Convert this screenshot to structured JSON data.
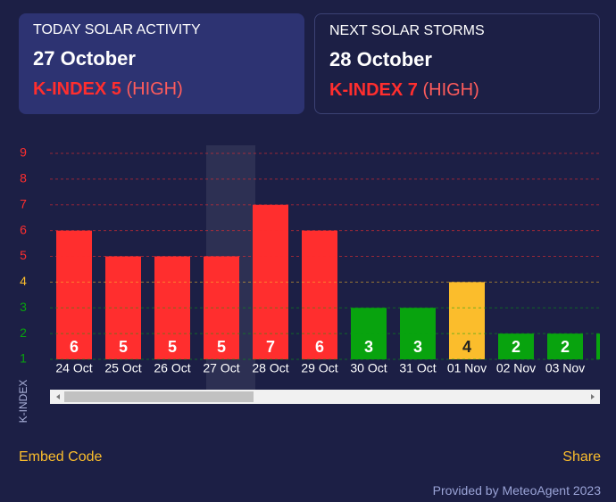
{
  "cards": [
    {
      "heading": "TODAY SOLAR ACTIVITY",
      "date": "27 October",
      "index": "K-INDEX 5",
      "level": "(HIGH)"
    },
    {
      "heading": "NEXT SOLAR STORMS",
      "date": "28 October",
      "index": "K-INDEX 7",
      "level": "(HIGH)"
    }
  ],
  "chart_data": {
    "type": "bar",
    "y_label": "K-INDEX",
    "categories": [
      "24 Oct",
      "25 Oct",
      "26 Oct",
      "27 Oct",
      "28 Oct",
      "29 Oct",
      "30 Oct",
      "31 Oct",
      "01 Nov",
      "02 Nov",
      "03 Nov",
      null
    ],
    "values": [
      6,
      5,
      5,
      5,
      7,
      6,
      3,
      3,
      4,
      2,
      2,
      2
    ],
    "colors": [
      "#ff2e2e",
      "#ff2e2e",
      "#ff2e2e",
      "#ff2e2e",
      "#ff2e2e",
      "#ff2e2e",
      "#08a30e",
      "#08a30e",
      "#fbbd2c",
      "#08a30e",
      "#08a30e",
      "#08a30e"
    ],
    "ylim": [
      1,
      9
    ],
    "yticks": [
      1,
      2,
      3,
      4,
      5,
      6,
      7,
      8,
      9
    ],
    "ytick_colors": [
      "#08a30e",
      "#08a30e",
      "#08a30e",
      "#fbbd2c",
      "#ff2e2e",
      "#ff2e2e",
      "#ff2e2e",
      "#ff2e2e",
      "#ff2e2e"
    ],
    "grid": true,
    "highlight_index": 3
  },
  "footer": {
    "embed": "Embed Code",
    "share": "Share",
    "credit": "Provided by MeteoAgent 2023"
  }
}
